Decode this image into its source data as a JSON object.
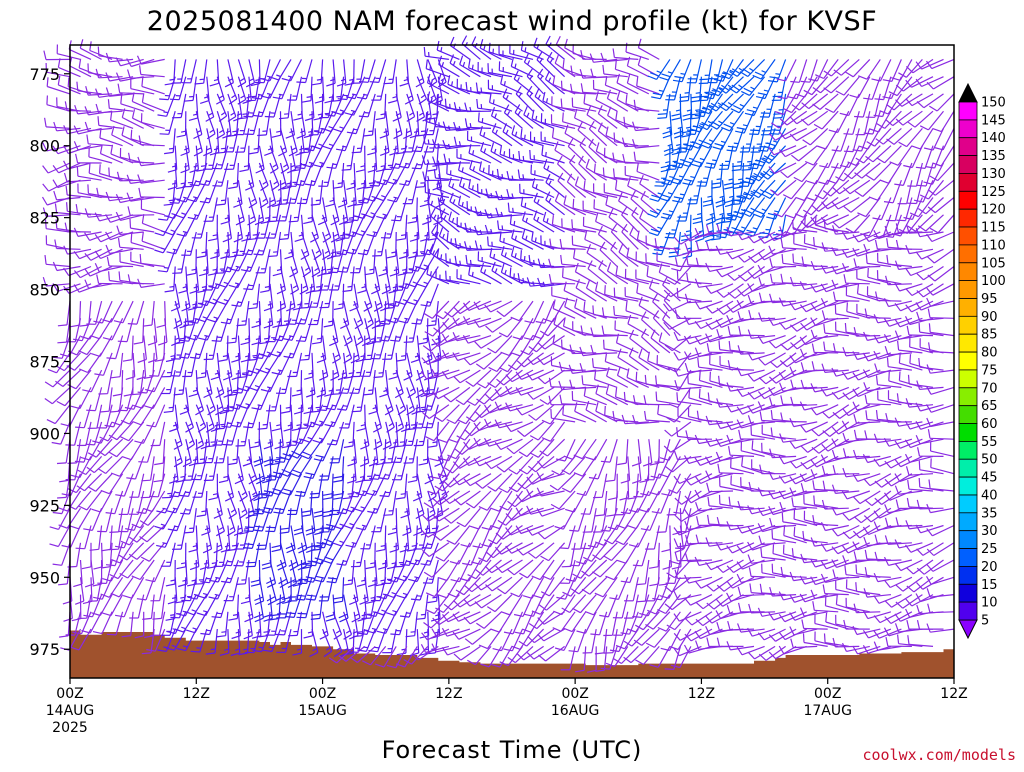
{
  "chart_data": {
    "type": "wind-barb-time-height",
    "title": "2025081400 NAM forecast wind profile (kt) for KVSF",
    "xlabel": "Forecast Time (UTC)",
    "ylabel": "",
    "credit": "coolwx.com/models",
    "y_axis": {
      "scale": "pressure (inverted, top at ~765 hPa)",
      "range": [
        765,
        985
      ],
      "ticks": [
        "775",
        "800",
        "825",
        "850",
        "875",
        "900",
        "925",
        "950",
        "975"
      ]
    },
    "x_axis": {
      "range_hours": [
        0,
        84
      ],
      "ticks": [
        {
          "hour": 0,
          "l1": "00Z",
          "l2": "14AUG",
          "l3": "2025"
        },
        {
          "hour": 12,
          "l1": "12Z",
          "l2": "",
          "l3": ""
        },
        {
          "hour": 24,
          "l1": "00Z",
          "l2": "15AUG",
          "l3": ""
        },
        {
          "hour": 36,
          "l1": "12Z",
          "l2": "",
          "l3": ""
        },
        {
          "hour": 48,
          "l1": "00Z",
          "l2": "16AUG",
          "l3": ""
        },
        {
          "hour": 60,
          "l1": "12Z",
          "l2": "",
          "l3": ""
        },
        {
          "hour": 72,
          "l1": "00Z",
          "l2": "17AUG",
          "l3": ""
        },
        {
          "hour": 84,
          "l1": "12Z",
          "l2": "",
          "l3": ""
        }
      ]
    },
    "colorbar": {
      "labels": [
        "150",
        "145",
        "140",
        "135",
        "130",
        "125",
        "120",
        "115",
        "110",
        "105",
        "100",
        "95",
        "90",
        "85",
        "80",
        "75",
        "70",
        "65",
        "60",
        "55",
        "50",
        "45",
        "40",
        "35",
        "30",
        "25",
        "20",
        "15",
        "10",
        "5"
      ],
      "colors": [
        "#ff00ff",
        "#ee00cc",
        "#e0008a",
        "#d80060",
        "#e00030",
        "#ff0000",
        "#ff2800",
        "#ff5000",
        "#ff6f00",
        "#ff8800",
        "#ff9900",
        "#ffb000",
        "#ffd000",
        "#ffe800",
        "#ffff00",
        "#ccff00",
        "#88ee00",
        "#44dd00",
        "#00dd00",
        "#00ee66",
        "#00eeaa",
        "#00eedd",
        "#00ccff",
        "#00aaff",
        "#0088ff",
        "#0060ff",
        "#0030f0",
        "#1000dd",
        "#5000ee",
        "#8a00ff"
      ]
    },
    "surface_pressure": {
      "hours": [
        0,
        1,
        2,
        3,
        4,
        5,
        6,
        7,
        8,
        9,
        10,
        11,
        12,
        13,
        14,
        15,
        16,
        17,
        18,
        19,
        20,
        21,
        22,
        23,
        24,
        25,
        26,
        27,
        28,
        29,
        30,
        31,
        32,
        33,
        34,
        35,
        36,
        37,
        38,
        39,
        40,
        41,
        42,
        43,
        44,
        45,
        46,
        47,
        48,
        49,
        50,
        51,
        52,
        53,
        54,
        55,
        56,
        57,
        58,
        59,
        60,
        61,
        62,
        63,
        64,
        65,
        66,
        67,
        68,
        69,
        70,
        71,
        72,
        73,
        74,
        75,
        76,
        77,
        78,
        79,
        80,
        81,
        82,
        83,
        84
      ],
      "values": [
        968.5,
        970,
        970,
        969,
        969,
        969,
        969,
        969,
        970,
        971,
        971,
        972,
        972,
        972,
        972,
        972,
        972,
        972,
        972.5,
        973.5,
        972.5,
        973.5,
        973.5,
        974,
        974,
        975,
        975,
        976.5,
        976.5,
        977,
        977,
        977,
        977,
        978,
        978,
        979,
        979,
        979.5,
        979.5,
        980,
        980,
        980,
        980,
        980,
        980,
        980,
        980,
        980,
        980,
        980.5,
        980.5,
        980.5,
        980.5,
        980.5,
        980,
        980,
        980,
        980,
        980,
        980,
        980,
        980,
        980,
        980,
        980,
        979,
        979,
        978,
        977,
        977,
        977,
        977,
        977,
        977,
        977,
        976.5,
        976.5,
        976.5,
        976.5,
        976,
        976,
        976,
        976,
        975,
        975
      ]
    },
    "barb_columns_per_hour": 1,
    "barb_levels_hpa": [
      770,
      776,
      782,
      788,
      794,
      800,
      806,
      812,
      818,
      824,
      830,
      836,
      842,
      848,
      854,
      860,
      866,
      872,
      878,
      884,
      890,
      896,
      902,
      908,
      914,
      920,
      926,
      932,
      938,
      944,
      950,
      956,
      962,
      968,
      974
    ],
    "wind_regimes": [
      {
        "hours": "0-10",
        "layer": "770-850",
        "direction_deg": 270,
        "speed_kt": 10
      },
      {
        "hours": "0-10",
        "layer": "850-970",
        "direction_deg": 200,
        "speed_kt": 10
      },
      {
        "hours": "10-36",
        "layer": "770-970",
        "direction_deg": 185,
        "speed_kt": 15
      },
      {
        "hours": "18-26",
        "layer": "900-960",
        "direction_deg": 190,
        "speed_kt": 20
      },
      {
        "hours": "36-48",
        "layer": "770-850",
        "direction_deg": 290,
        "speed_kt": 15
      },
      {
        "hours": "36-48",
        "layer": "850-975",
        "direction_deg": 230,
        "speed_kt": 10
      },
      {
        "hours": "48-58",
        "layer": "770-900",
        "direction_deg": 290,
        "speed_kt": 12
      },
      {
        "hours": "48-58",
        "layer": "900-980",
        "direction_deg": 200,
        "speed_kt": 8
      },
      {
        "hours": "57-68",
        "layer": "770-830",
        "direction_deg": 200,
        "speed_kt": 25
      },
      {
        "hours": "60-84",
        "layer": "830-975",
        "direction_deg": 260,
        "speed_kt": 12
      }
    ]
  }
}
